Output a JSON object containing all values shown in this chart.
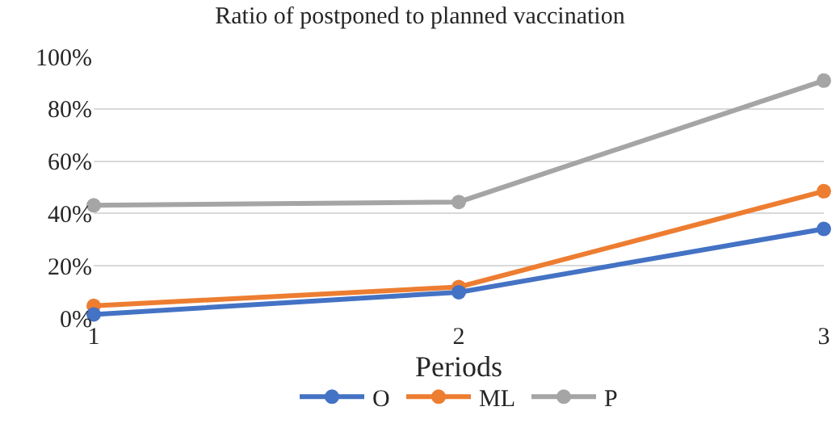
{
  "chart_data": {
    "type": "line",
    "title": "Ratio of postponed to planned vaccination",
    "xlabel": "Periods",
    "x": [
      1,
      2,
      3
    ],
    "xlim": [
      1,
      3
    ],
    "xticks": [
      1,
      2,
      3
    ],
    "ylim": [
      0,
      100
    ],
    "yticks": [
      {
        "value": 0,
        "label": "0%"
      },
      {
        "value": 20,
        "label": "20%"
      },
      {
        "value": 40,
        "label": "40%"
      },
      {
        "value": 60,
        "label": "60%"
      },
      {
        "value": 80,
        "label": "80%"
      },
      {
        "value": 100,
        "label": "100%"
      }
    ],
    "series": [
      {
        "name": "O",
        "color": "#4472c4",
        "values": [
          1.4,
          9.9,
          34.1
        ]
      },
      {
        "name": "ML",
        "color": "#ed7d31",
        "values": [
          4.7,
          11.9,
          48.5
        ]
      },
      {
        "name": "P",
        "color": "#a5a5a5",
        "values": [
          43.1,
          44.4,
          90.8
        ]
      }
    ],
    "grid": "y",
    "legend": "bottom",
    "marker": "circle",
    "line_style": "solid"
  }
}
